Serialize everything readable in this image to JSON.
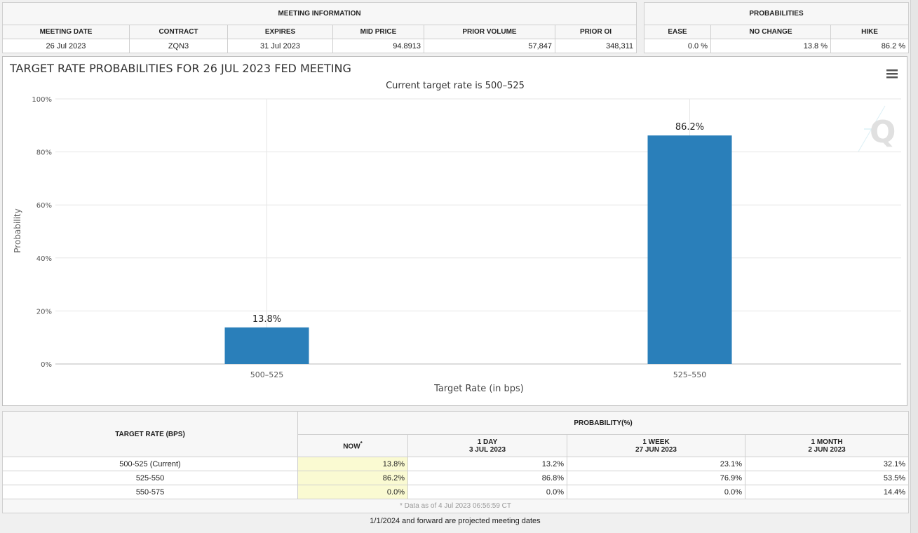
{
  "meeting_info": {
    "title": "MEETING INFORMATION",
    "headers": [
      "MEETING DATE",
      "CONTRACT",
      "EXPIRES",
      "MID PRICE",
      "PRIOR VOLUME",
      "PRIOR OI"
    ],
    "values": [
      "26 Jul 2023",
      "ZQN3",
      "31 Jul 2023",
      "94.8913",
      "57,847",
      "348,311"
    ]
  },
  "probabilities": {
    "title": "PROBABILITIES",
    "headers": [
      "EASE",
      "NO CHANGE",
      "HIKE"
    ],
    "values": [
      "0.0 %",
      "13.8 %",
      "86.2 %"
    ]
  },
  "chart_data": {
    "type": "bar",
    "title": "TARGET RATE PROBABILITIES FOR 26 JUL 2023 FED MEETING",
    "subtitle": "Current target rate is 500–525",
    "xlabel": "Target Rate (in bps)",
    "ylabel": "Probability",
    "categories": [
      "500–525",
      "525–550"
    ],
    "values": [
      13.8,
      86.2
    ],
    "data_labels": [
      "13.8%",
      "86.2%"
    ],
    "ylim": [
      0,
      100
    ],
    "yticks": [
      0,
      20,
      40,
      60,
      80,
      100
    ],
    "ytick_labels": [
      "0%",
      "20%",
      "40%",
      "60%",
      "80%",
      "100%"
    ],
    "grid": true,
    "bar_color": "#2a7fba"
  },
  "history_table": {
    "target_rate_header": "TARGET RATE (BPS)",
    "probability_header": "PROBABILITY(%)",
    "columns": [
      {
        "label": "NOW",
        "sup": "*",
        "date": ""
      },
      {
        "label": "1 DAY",
        "date": "3 JUL 2023"
      },
      {
        "label": "1 WEEK",
        "date": "27 JUN 2023"
      },
      {
        "label": "1 MONTH",
        "date": "2 JUN 2023"
      }
    ],
    "rows": [
      {
        "rate": "500-525 (Current)",
        "values": [
          "13.8%",
          "13.2%",
          "23.1%",
          "32.1%"
        ]
      },
      {
        "rate": "525-550",
        "values": [
          "86.2%",
          "86.8%",
          "76.9%",
          "53.5%"
        ]
      },
      {
        "rate": "550-575",
        "values": [
          "0.0%",
          "0.0%",
          "0.0%",
          "14.4%"
        ]
      }
    ],
    "data_note": "* Data as of 4 Jul 2023 06:56:59 CT"
  },
  "footer_note": "1/1/2024 and forward are projected meeting dates"
}
